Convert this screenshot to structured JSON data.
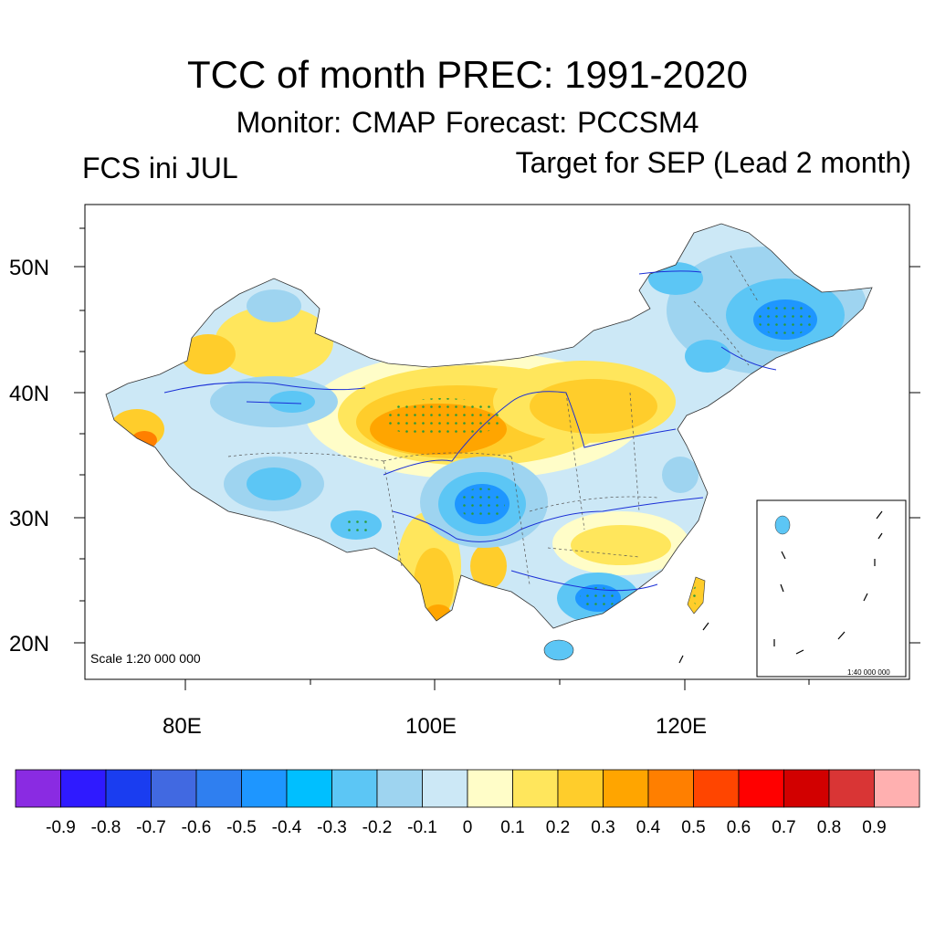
{
  "header": {
    "title": "TCC of month PREC: 1991-2020",
    "subtitle": "Monitor: CMAP   Forecast: PCCSM4",
    "left_label": "FCS ini JUL",
    "right_label": "Target for SEP (Lead 2 month)"
  },
  "map": {
    "lat_labels": [
      "50N",
      "40N",
      "30N",
      "20N"
    ],
    "lon_labels": [
      "80E",
      "100E",
      "120E"
    ],
    "scale_label": "Scale 1:20 000 000",
    "inset_scale_label": "1:40 000 000"
  },
  "colorbar": {
    "colors": [
      "#8a2be2",
      "#2f1aff",
      "#1a3df0",
      "#4169e1",
      "#2f7ff0",
      "#1e96ff",
      "#00bfff",
      "#5cc6f5",
      "#9ed4f0",
      "#cce8f6",
      "#fffdc8",
      "#ffe65c",
      "#ffcd2b",
      "#ffa500",
      "#ff7f00",
      "#ff4500",
      "#ff0000",
      "#d20000",
      "#d93535",
      "#ffb0b0"
    ],
    "labels": [
      "-0.9",
      "-0.8",
      "-0.7",
      "-0.6",
      "-0.5",
      "-0.4",
      "-0.3",
      "-0.2",
      "-0.1",
      "0",
      "0.1",
      "0.2",
      "0.3",
      "0.4",
      "0.5",
      "0.6",
      "0.7",
      "0.8",
      "0.9"
    ]
  }
}
